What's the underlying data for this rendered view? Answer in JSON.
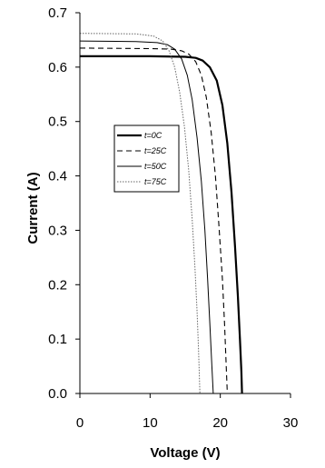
{
  "chart_data": {
    "type": "line",
    "title": "",
    "xlabel": "Voltage (V)",
    "ylabel": "Current (A)",
    "xlim": [
      0,
      30
    ],
    "ylim": [
      0,
      0.7
    ],
    "x_ticks": [
      "0",
      "10",
      "20",
      "30"
    ],
    "y_ticks": [
      "0.0",
      "0.1",
      "0.2",
      "0.3",
      "0.4",
      "0.5",
      "0.6",
      "0.7"
    ],
    "grid": false,
    "legend_position": "center",
    "series": [
      {
        "name": "t=0C",
        "style": "solid-thick",
        "color": "#000000",
        "x": [
          0,
          10,
          15,
          16.5,
          17.5,
          18.5,
          19.5,
          20.3,
          21.0,
          21.6,
          22.1,
          22.5,
          22.8,
          23.0,
          23.1
        ],
        "y": [
          0.62,
          0.62,
          0.619,
          0.617,
          0.612,
          0.6,
          0.575,
          0.53,
          0.46,
          0.37,
          0.27,
          0.18,
          0.1,
          0.04,
          0.0
        ]
      },
      {
        "name": "t=25C",
        "style": "dashed",
        "color": "#000000",
        "x": [
          0,
          10,
          13,
          14.5,
          15.5,
          16.5,
          17.3,
          18.0,
          18.7,
          19.3,
          19.8,
          20.3,
          20.6,
          20.85,
          21.0
        ],
        "y": [
          0.635,
          0.634,
          0.633,
          0.63,
          0.624,
          0.61,
          0.585,
          0.545,
          0.48,
          0.4,
          0.31,
          0.21,
          0.13,
          0.05,
          0.0
        ]
      },
      {
        "name": "t=50C",
        "style": "solid-thin",
        "color": "#000000",
        "x": [
          0,
          8,
          11,
          12.5,
          13.5,
          14.5,
          15.3,
          16.0,
          16.7,
          17.3,
          17.8,
          18.2,
          18.5,
          18.8,
          19.0
        ],
        "y": [
          0.648,
          0.647,
          0.645,
          0.641,
          0.633,
          0.615,
          0.585,
          0.54,
          0.47,
          0.39,
          0.3,
          0.21,
          0.13,
          0.05,
          0.0
        ]
      },
      {
        "name": "t=75C",
        "style": "dotted",
        "color": "#666666",
        "x": [
          0,
          8,
          10.5,
          11.8,
          12.7,
          13.5,
          14.2,
          14.9,
          15.5,
          16.0,
          16.4,
          16.7,
          16.9,
          17.1
        ],
        "y": [
          0.662,
          0.661,
          0.657,
          0.648,
          0.63,
          0.6,
          0.555,
          0.49,
          0.41,
          0.32,
          0.23,
          0.15,
          0.08,
          0.0
        ]
      }
    ]
  }
}
